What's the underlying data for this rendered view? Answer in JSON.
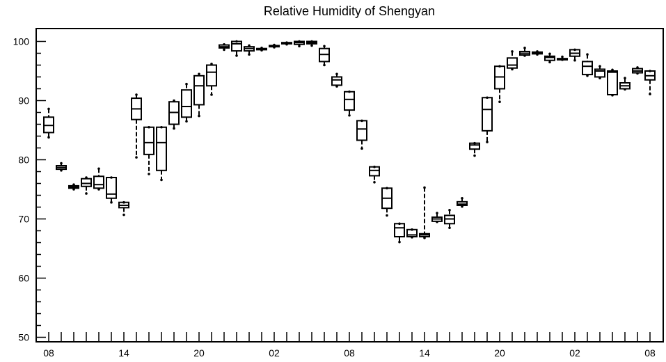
{
  "chart_data": {
    "type": "boxplot",
    "title": "Relative Humidity of Shengyan",
    "xlabel": "",
    "ylabel": "",
    "ylim": [
      50,
      102
    ],
    "x_tick_labels": [
      "08",
      "14",
      "20",
      "02",
      "08",
      "14",
      "20",
      "02",
      "08"
    ],
    "y_tick_labels": [
      "50",
      "60",
      "70",
      "80",
      "90",
      "100"
    ],
    "y_ticks": [
      50,
      60,
      70,
      80,
      90,
      100
    ],
    "grid": false,
    "colors": {
      "box": "#000000",
      "background": "#ffffff"
    },
    "boxes": [
      {
        "hour": 0,
        "min": 83.8,
        "q1": 84.6,
        "median": 85.8,
        "q3": 87.2,
        "max": 88.6
      },
      {
        "hour": 1,
        "min": 78.2,
        "q1": 78.4,
        "median": 78.7,
        "q3": 79.0,
        "max": 79.4
      },
      {
        "hour": 2,
        "min": 75.0,
        "q1": 75.2,
        "median": 75.4,
        "q3": 75.6,
        "max": 75.8
      },
      {
        "hour": 3,
        "min": 74.3,
        "q1": 75.5,
        "median": 76.0,
        "q3": 76.8,
        "max": 77.0
      },
      {
        "hour": 4,
        "min": 75.0,
        "q1": 75.2,
        "median": 75.8,
        "q3": 77.2,
        "max": 78.5
      },
      {
        "hour": 5,
        "min": 72.8,
        "q1": 73.5,
        "median": 74.2,
        "q3": 77.0,
        "max": 77.0
      },
      {
        "hour": 6,
        "min": 70.7,
        "q1": 71.9,
        "median": 72.3,
        "q3": 72.8,
        "max": 72.8
      },
      {
        "hour": 7,
        "min": 80.4,
        "q1": 86.8,
        "median": 88.6,
        "q3": 90.4,
        "max": 91.0
      },
      {
        "hour": 8,
        "min": 77.6,
        "q1": 80.9,
        "median": 82.9,
        "q3": 85.5,
        "max": 85.5
      },
      {
        "hour": 9,
        "min": 76.6,
        "q1": 78.2,
        "median": 82.9,
        "q3": 85.5,
        "max": 85.5
      },
      {
        "hour": 10,
        "min": 85.3,
        "q1": 86.0,
        "median": 88.0,
        "q3": 89.8,
        "max": 90.0
      },
      {
        "hour": 11,
        "min": 86.5,
        "q1": 87.2,
        "median": 89.0,
        "q3": 91.8,
        "max": 92.8
      },
      {
        "hour": 12,
        "min": 87.4,
        "q1": 89.3,
        "median": 92.5,
        "q3": 94.2,
        "max": 94.5
      },
      {
        "hour": 13,
        "min": 91.0,
        "q1": 92.5,
        "median": 94.8,
        "q3": 96.0,
        "max": 96.2
      },
      {
        "hour": 14,
        "min": 98.6,
        "q1": 98.9,
        "median": 99.1,
        "q3": 99.4,
        "max": 99.5
      },
      {
        "hour": 15,
        "min": 97.6,
        "q1": 98.4,
        "median": 99.6,
        "q3": 100.0,
        "max": 100.0
      },
      {
        "hour": 16,
        "min": 97.8,
        "q1": 98.4,
        "median": 98.8,
        "q3": 99.1,
        "max": 99.3
      },
      {
        "hour": 17,
        "min": 98.5,
        "q1": 98.6,
        "median": 98.7,
        "q3": 98.8,
        "max": 98.9
      },
      {
        "hour": 18,
        "min": 99.0,
        "q1": 99.1,
        "median": 99.2,
        "q3": 99.3,
        "max": 99.4
      },
      {
        "hour": 19,
        "min": 99.5,
        "q1": 99.6,
        "median": 99.7,
        "q3": 99.8,
        "max": 99.8
      },
      {
        "hour": 20,
        "min": 99.2,
        "q1": 99.5,
        "median": 99.8,
        "q3": 100.0,
        "max": 100.0
      },
      {
        "hour": 21,
        "min": 99.3,
        "q1": 99.6,
        "median": 99.8,
        "q3": 100.0,
        "max": 100.0
      },
      {
        "hour": 22,
        "min": 96.0,
        "q1": 96.6,
        "median": 97.8,
        "q3": 98.8,
        "max": 99.2
      },
      {
        "hour": 23,
        "min": 92.4,
        "q1": 92.6,
        "median": 93.5,
        "q3": 94.0,
        "max": 94.5
      },
      {
        "hour": 24,
        "min": 87.5,
        "q1": 88.4,
        "median": 90.2,
        "q3": 91.5,
        "max": 91.5
      },
      {
        "hour": 25,
        "min": 81.9,
        "q1": 83.3,
        "median": 85.2,
        "q3": 86.6,
        "max": 86.6
      },
      {
        "hour": 26,
        "min": 76.2,
        "q1": 77.3,
        "median": 78.2,
        "q3": 78.8,
        "max": 78.8
      },
      {
        "hour": 27,
        "min": 70.6,
        "q1": 71.8,
        "median": 73.5,
        "q3": 75.2,
        "max": 75.2
      },
      {
        "hour": 28,
        "min": 66.1,
        "q1": 67.0,
        "median": 68.5,
        "q3": 69.2,
        "max": 69.2
      },
      {
        "hour": 29,
        "min": 66.9,
        "q1": 67.0,
        "median": 67.3,
        "q3": 68.2,
        "max": 68.2
      },
      {
        "hour": 30,
        "min": 66.8,
        "q1": 67.0,
        "median": 67.3,
        "q3": 67.5,
        "max": 75.3
      },
      {
        "hour": 31,
        "min": 69.5,
        "q1": 69.6,
        "median": 70.0,
        "q3": 70.3,
        "max": 71.0
      },
      {
        "hour": 32,
        "min": 68.5,
        "q1": 69.2,
        "median": 70.0,
        "q3": 70.6,
        "max": 71.5
      },
      {
        "hour": 33,
        "min": 72.1,
        "q1": 72.3,
        "median": 72.5,
        "q3": 72.9,
        "max": 73.5
      },
      {
        "hour": 34,
        "min": 80.7,
        "q1": 81.8,
        "median": 82.5,
        "q3": 82.8,
        "max": 82.8
      },
      {
        "hour": 35,
        "min": 83.0,
        "q1": 84.9,
        "median": 88.5,
        "q3": 90.5,
        "max": 90.5
      },
      {
        "hour": 36,
        "min": 89.8,
        "q1": 92.0,
        "median": 94.0,
        "q3": 95.8,
        "max": 95.8
      },
      {
        "hour": 37,
        "min": 95.3,
        "q1": 95.5,
        "median": 96.0,
        "q3": 97.2,
        "max": 98.3
      },
      {
        "hour": 38,
        "min": 97.6,
        "q1": 97.7,
        "median": 98.0,
        "q3": 98.3,
        "max": 98.9
      },
      {
        "hour": 39,
        "min": 97.8,
        "q1": 97.9,
        "median": 98.0,
        "q3": 98.2,
        "max": 98.3
      },
      {
        "hour": 40,
        "min": 96.5,
        "q1": 96.8,
        "median": 97.3,
        "q3": 97.5,
        "max": 97.9
      },
      {
        "hour": 41,
        "min": 96.9,
        "q1": 96.9,
        "median": 97.0,
        "q3": 97.1,
        "max": 97.4
      },
      {
        "hour": 42,
        "min": 96.8,
        "q1": 97.5,
        "median": 98.0,
        "q3": 98.6,
        "max": 98.6
      },
      {
        "hour": 43,
        "min": 94.2,
        "q1": 94.4,
        "median": 95.8,
        "q3": 96.6,
        "max": 97.8
      },
      {
        "hour": 44,
        "min": 93.8,
        "q1": 94.0,
        "median": 95.0,
        "q3": 95.3,
        "max": 95.8
      },
      {
        "hour": 45,
        "min": 90.9,
        "q1": 91.0,
        "median": 94.8,
        "q3": 95.0,
        "max": 95.2
      },
      {
        "hour": 46,
        "min": 91.9,
        "q1": 92.0,
        "median": 92.5,
        "q3": 93.0,
        "max": 93.8
      },
      {
        "hour": 47,
        "min": 94.6,
        "q1": 94.7,
        "median": 95.0,
        "q3": 95.4,
        "max": 95.6
      },
      {
        "hour": 48,
        "min": 91.1,
        "q1": 93.5,
        "median": 94.2,
        "q3": 95.0,
        "max": 95.0
      }
    ]
  }
}
